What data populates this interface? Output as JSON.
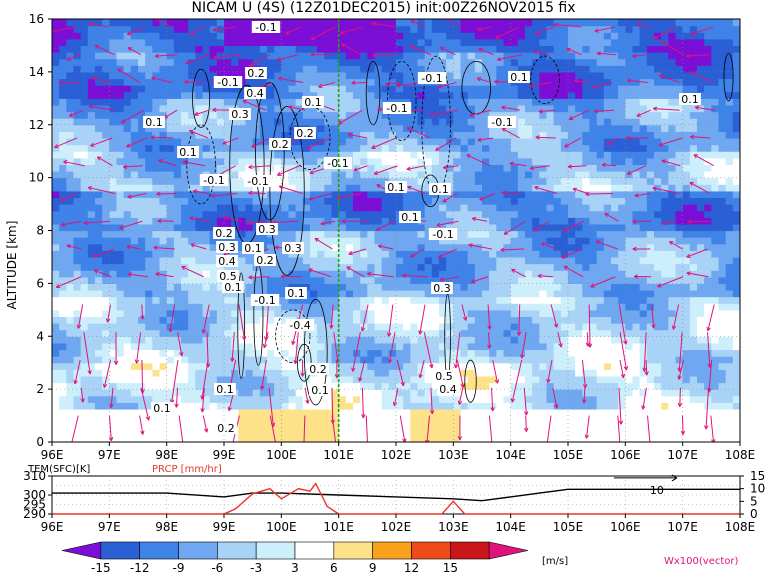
{
  "title": "NICAM U (4S) (12Z01DEC2015) init:00Z26NOV2015 fix",
  "colors": {
    "arrow": "#e0137a",
    "marker_line": "#17a316",
    "precip": "#e8372a",
    "temp": "#000000"
  },
  "chart_data": [
    {
      "type": "heatmap",
      "ylabel": "ALTITUDE [km]",
      "x_ticks": [
        "96E",
        "97E",
        "98E",
        "99E",
        "100E",
        "101E",
        "102E",
        "103E",
        "104E",
        "105E",
        "106E",
        "107E",
        "108E"
      ],
      "x_range": [
        96,
        108
      ],
      "y_ticks": [
        "0",
        "2",
        "4",
        "6",
        "8",
        "10",
        "12",
        "14",
        "16"
      ],
      "y_range": [
        0,
        16
      ],
      "marker_longitude": 101.0,
      "contour_labels": [
        "-0.1",
        "0.1",
        "-0.1",
        "0.2",
        "0.4",
        "0.3",
        "0.2",
        "0.1",
        "-0.1",
        "0.1",
        "0.1",
        "-0.1",
        "0.1",
        "-0.1",
        "-0.1",
        "0.1",
        "0.1",
        "0.2",
        "-0.1",
        "0.1",
        "-0.1",
        "-0.1",
        "0.3",
        "0.2",
        "0.3",
        "0.1",
        "0.2",
        "0.3",
        "0.1",
        "0.4",
        "0.5",
        "-0.1",
        "-0.4",
        "0.1",
        "0.2",
        "0.1",
        "0.1",
        "0.2",
        "0.5",
        "0.4",
        "0.3",
        "0.1"
      ],
      "u_bands": [
        {
          "z": [
            0,
            1.2
          ],
          "u": 0
        },
        {
          "z": [
            1.2,
            3
          ],
          "u": -2
        },
        {
          "z": [
            3,
            5.5
          ],
          "u": -4
        },
        {
          "z": [
            5.5,
            8
          ],
          "u": -7
        },
        {
          "z": [
            8,
            9.5
          ],
          "u": -10
        },
        {
          "z": [
            9.5,
            11
          ],
          "u": -5
        },
        {
          "z": [
            11,
            13
          ],
          "u": -8
        },
        {
          "z": [
            13,
            14.8
          ],
          "u": -11
        },
        {
          "z": [
            14.8,
            16
          ],
          "u": -13
        }
      ]
    },
    {
      "type": "line",
      "left_label": "TEM(SFC)[K]",
      "right_label": "PRCP [mm/hr]",
      "left_ticks": [
        "310",
        "300",
        "290"
      ],
      "left_ticks_mid": "295",
      "right_ticks": [
        "15",
        "10",
        "5",
        "0"
      ],
      "x_ticks": [
        "96E",
        "97E",
        "98E",
        "99E",
        "100E",
        "101E",
        "102E",
        "103E",
        "104E",
        "105E",
        "106E",
        "107E",
        "108E"
      ],
      "temp_label": "10",
      "temperature": {
        "x": [
          96,
          98,
          99,
          99.5,
          100,
          101,
          102,
          103,
          103.5,
          104,
          104.5,
          105,
          106,
          107,
          108
        ],
        "y": [
          301,
          301,
          299,
          301,
          301,
          300,
          299,
          298,
          297,
          299,
          301,
          303,
          303,
          303,
          303
        ]
      },
      "precip": {
        "x": [
          96,
          99,
          99.2,
          99.5,
          99.8,
          100,
          100.3,
          100.5,
          100.6,
          100.8,
          101,
          102,
          102.8,
          103,
          103.2,
          104,
          108
        ],
        "y": [
          0,
          0,
          2,
          8,
          10,
          6,
          10,
          9,
          12,
          3,
          0,
          0,
          0,
          5,
          0,
          0,
          0
        ]
      }
    },
    {
      "type": "colorbar",
      "tick_labels": [
        "-15",
        "-12",
        "-9",
        "-6",
        "-3",
        "3",
        "6",
        "9",
        "12",
        "15"
      ],
      "colors": [
        "#7b0fd6",
        "#2a5fd6",
        "#3f83e8",
        "#6fa7f0",
        "#a9d2f7",
        "#cdeefb",
        "#ffffff",
        "#fde28a",
        "#f9a11b",
        "#ef4a1a",
        "#c8161a",
        "#e0137a"
      ],
      "unit": "[m/s]",
      "vector_label": "Wx100(vector)"
    }
  ]
}
